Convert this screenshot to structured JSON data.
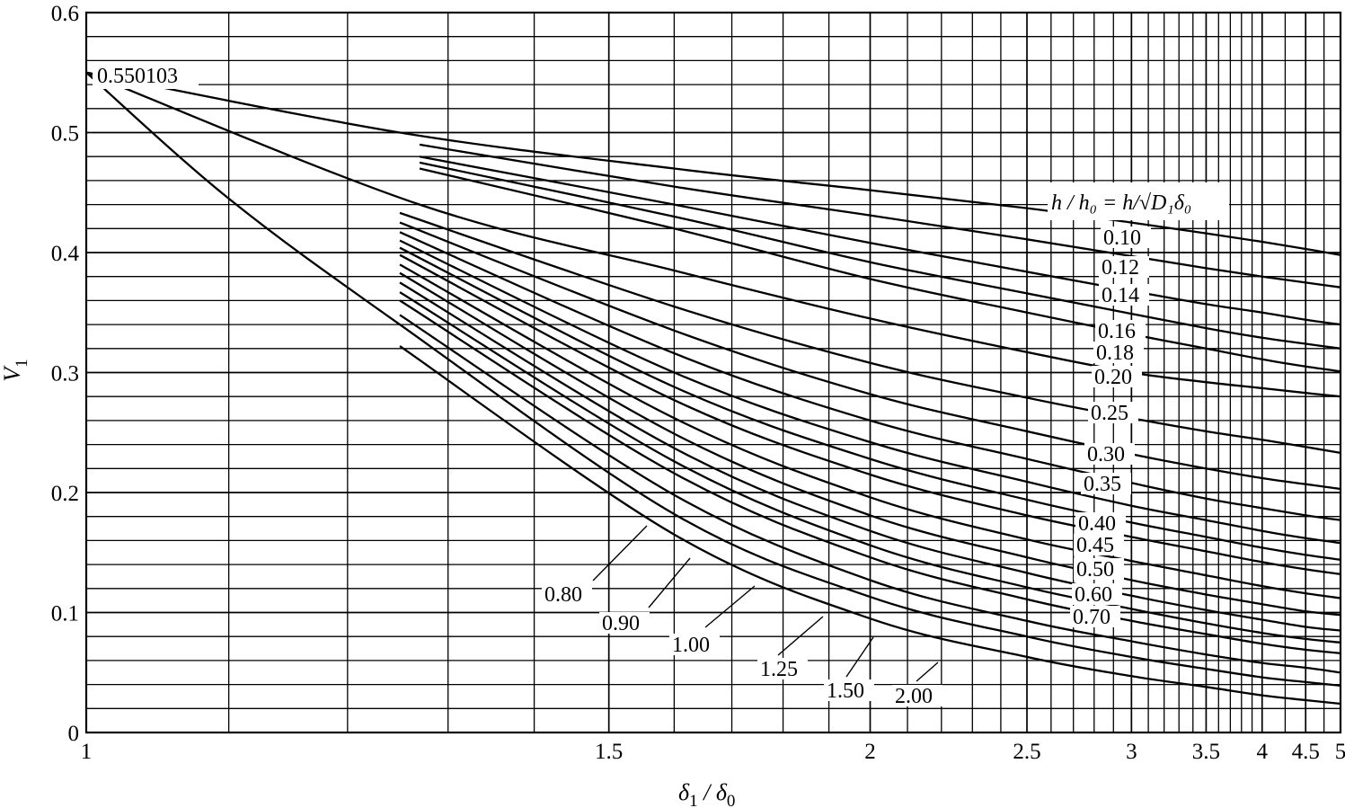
{
  "chart_data": {
    "type": "line",
    "x_axis": {
      "scale": "reciprocal",
      "range": [
        1,
        5
      ],
      "tick_labels": [
        "1",
        "1.5",
        "2",
        "2.5",
        "3",
        "3.5",
        "4",
        "4.5",
        "5"
      ]
    },
    "y_axis": {
      "range": [
        0,
        0.6
      ],
      "tick_labels": [
        "0",
        "0.1",
        "0.2",
        "0.3",
        "0.4",
        "0.5",
        "0.6"
      ]
    },
    "grid": true,
    "ylabel": "V",
    "ylabel_sub": "1",
    "xlabel_num": "δ",
    "xlabel_num_sub": "1",
    "xlabel_den": "δ",
    "xlabel_den_sub": "0",
    "legend_title": "h / h₀ = h/√D₁δ₀",
    "annotation": "0.550103",
    "series": [
      {
        "name": "0.10",
        "values": [
          [
            1,
            0.550103
          ],
          [
            1.25,
            0.5
          ],
          [
            1.6,
            0.47
          ],
          [
            2,
            0.452
          ],
          [
            2.5,
            0.437
          ],
          [
            3,
            0.425
          ],
          [
            3.5,
            0.416
          ],
          [
            4,
            0.409
          ],
          [
            4.5,
            0.403
          ],
          [
            5,
            0.398
          ]
        ]
      },
      {
        "name": "0.12",
        "values": [
          [
            1.27,
            0.49
          ],
          [
            1.6,
            0.455
          ],
          [
            2,
            0.431
          ],
          [
            2.5,
            0.411
          ],
          [
            3,
            0.397
          ],
          [
            3.5,
            0.387
          ],
          [
            4,
            0.38
          ],
          [
            4.5,
            0.375
          ],
          [
            5,
            0.371
          ]
        ]
      },
      {
        "name": "0.14",
        "values": [
          [
            1.27,
            0.48
          ],
          [
            1.6,
            0.44
          ],
          [
            2,
            0.408
          ],
          [
            2.5,
            0.384
          ],
          [
            3,
            0.368
          ],
          [
            3.5,
            0.357
          ],
          [
            4,
            0.35
          ],
          [
            4.5,
            0.344
          ],
          [
            5,
            0.34
          ]
        ]
      },
      {
        "name": "0.16",
        "values": [
          [
            1.27,
            0.475
          ],
          [
            1.6,
            0.43
          ],
          [
            2,
            0.392
          ],
          [
            2.5,
            0.366
          ],
          [
            3,
            0.349
          ],
          [
            3.5,
            0.337
          ],
          [
            4,
            0.329
          ],
          [
            4.5,
            0.324
          ],
          [
            5,
            0.32
          ]
        ]
      },
      {
        "name": "0.18",
        "values": [
          [
            1.27,
            0.47
          ],
          [
            1.6,
            0.42
          ],
          [
            2,
            0.378
          ],
          [
            2.5,
            0.35
          ],
          [
            3,
            0.332
          ],
          [
            3.5,
            0.32
          ],
          [
            4,
            0.311
          ],
          [
            4.5,
            0.305
          ],
          [
            5,
            0.301
          ]
        ]
      },
      {
        "name": "0.20",
        "values": [
          [
            1,
            0.550103
          ],
          [
            1.27,
            0.44
          ],
          [
            1.6,
            0.385
          ],
          [
            2,
            0.345
          ],
          [
            2.5,
            0.317
          ],
          [
            3,
            0.3
          ],
          [
            3.5,
            0.292
          ],
          [
            4,
            0.287
          ],
          [
            4.5,
            0.283
          ],
          [
            5,
            0.28
          ]
        ]
      },
      {
        "name": "0.25",
        "values": [
          [
            1.25,
            0.433
          ],
          [
            1.6,
            0.355
          ],
          [
            2,
            0.308
          ],
          [
            2.5,
            0.279
          ],
          [
            3,
            0.262
          ],
          [
            3.5,
            0.251
          ],
          [
            4,
            0.244
          ],
          [
            4.5,
            0.238
          ],
          [
            5,
            0.233
          ]
        ]
      },
      {
        "name": "0.30",
        "values": [
          [
            1.25,
            0.425
          ],
          [
            1.6,
            0.335
          ],
          [
            2,
            0.282
          ],
          [
            2.5,
            0.251
          ],
          [
            3,
            0.232
          ],
          [
            3.5,
            0.22
          ],
          [
            4,
            0.212
          ],
          [
            4.5,
            0.207
          ],
          [
            5,
            0.203
          ]
        ]
      },
      {
        "name": "0.35",
        "values": [
          [
            1.25,
            0.417
          ],
          [
            1.6,
            0.316
          ],
          [
            2,
            0.26
          ],
          [
            2.5,
            0.228
          ],
          [
            3,
            0.208
          ],
          [
            3.5,
            0.195
          ],
          [
            4,
            0.187
          ],
          [
            4.5,
            0.181
          ],
          [
            5,
            0.177
          ]
        ]
      },
      {
        "name": "0.40",
        "values": [
          [
            1.25,
            0.41
          ],
          [
            1.6,
            0.3
          ],
          [
            2,
            0.242
          ],
          [
            2.5,
            0.209
          ],
          [
            3,
            0.189
          ],
          [
            3.5,
            0.177
          ],
          [
            4,
            0.168
          ],
          [
            4.5,
            0.162
          ],
          [
            5,
            0.158
          ]
        ]
      },
      {
        "name": "0.45",
        "values": [
          [
            1.25,
            0.404
          ],
          [
            1.6,
            0.288
          ],
          [
            2,
            0.228
          ],
          [
            2.5,
            0.194
          ],
          [
            3,
            0.175
          ],
          [
            3.5,
            0.163
          ],
          [
            4,
            0.154
          ],
          [
            4.5,
            0.148
          ],
          [
            5,
            0.144
          ]
        ]
      },
      {
        "name": "0.50",
        "values": [
          [
            1.25,
            0.398
          ],
          [
            1.6,
            0.277
          ],
          [
            2,
            0.215
          ],
          [
            2.5,
            0.181
          ],
          [
            3,
            0.163
          ],
          [
            3.5,
            0.151
          ],
          [
            4,
            0.142
          ],
          [
            4.5,
            0.136
          ],
          [
            5,
            0.132
          ]
        ]
      },
      {
        "name": "0.60",
        "values": [
          [
            1.25,
            0.39
          ],
          [
            1.6,
            0.262
          ],
          [
            2,
            0.196
          ],
          [
            2.5,
            0.161
          ],
          [
            3,
            0.143
          ],
          [
            3.5,
            0.131
          ],
          [
            4,
            0.122
          ],
          [
            4.5,
            0.116
          ],
          [
            5,
            0.112
          ]
        ]
      },
      {
        "name": "0.70",
        "values": [
          [
            1.25,
            0.383
          ],
          [
            1.6,
            0.249
          ],
          [
            2,
            0.181
          ],
          [
            2.5,
            0.146
          ],
          [
            3,
            0.127
          ],
          [
            3.5,
            0.115
          ],
          [
            4,
            0.107
          ],
          [
            4.5,
            0.101
          ],
          [
            5,
            0.098
          ]
        ]
      },
      {
        "name": "0.80",
        "values": [
          [
            1.25,
            0.375
          ],
          [
            1.6,
            0.237
          ],
          [
            2,
            0.168
          ],
          [
            2.5,
            0.133
          ],
          [
            3,
            0.114
          ],
          [
            3.5,
            0.102
          ],
          [
            4,
            0.094
          ],
          [
            4.5,
            0.088
          ],
          [
            5,
            0.085
          ]
        ]
      },
      {
        "name": "0.90",
        "values": [
          [
            1.25,
            0.367
          ],
          [
            1.6,
            0.226
          ],
          [
            2,
            0.156
          ],
          [
            2.5,
            0.121
          ],
          [
            3,
            0.103
          ],
          [
            3.5,
            0.091
          ],
          [
            4,
            0.083
          ],
          [
            4.5,
            0.078
          ],
          [
            5,
            0.075
          ]
        ]
      },
      {
        "name": "1.00",
        "values": [
          [
            1.25,
            0.36
          ],
          [
            1.6,
            0.216
          ],
          [
            2,
            0.146
          ],
          [
            2.5,
            0.111
          ],
          [
            3,
            0.093
          ],
          [
            3.5,
            0.082
          ],
          [
            4,
            0.074
          ],
          [
            4.5,
            0.069
          ],
          [
            5,
            0.066
          ]
        ]
      },
      {
        "name": "1.25",
        "values": [
          [
            1.25,
            0.348
          ],
          [
            1.6,
            0.198
          ],
          [
            2,
            0.127
          ],
          [
            2.5,
            0.093
          ],
          [
            3,
            0.076
          ],
          [
            3.5,
            0.065
          ],
          [
            4,
            0.058
          ],
          [
            4.5,
            0.054
          ],
          [
            5,
            0.05
          ]
        ]
      },
      {
        "name": "1.50",
        "values": [
          [
            1,
            0.550103
          ],
          [
            1.1,
            0.445
          ],
          [
            1.25,
            0.34
          ],
          [
            1.6,
            0.182
          ],
          [
            2,
            0.113
          ],
          [
            2.5,
            0.08
          ],
          [
            3,
            0.063
          ],
          [
            3.5,
            0.053
          ],
          [
            4,
            0.046
          ],
          [
            4.5,
            0.042
          ],
          [
            5,
            0.039
          ]
        ]
      },
      {
        "name": "2.00",
        "values": [
          [
            1.25,
            0.322
          ],
          [
            1.6,
            0.165
          ],
          [
            2,
            0.095
          ],
          [
            2.5,
            0.063
          ],
          [
            3,
            0.047
          ],
          [
            3.5,
            0.038
          ],
          [
            4,
            0.031
          ],
          [
            4.5,
            0.027
          ],
          [
            5,
            0.024
          ]
        ]
      }
    ]
  }
}
